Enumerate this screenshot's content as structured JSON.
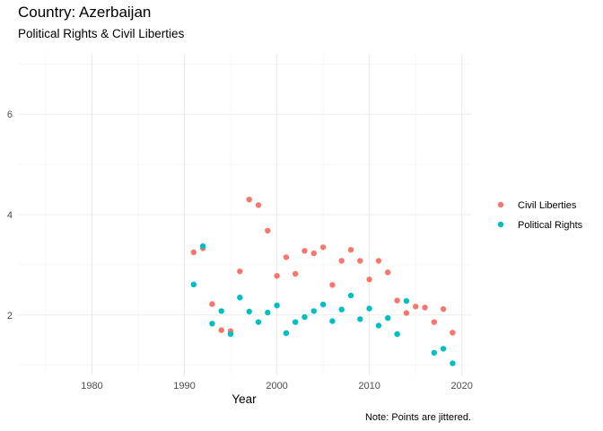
{
  "chart_data": {
    "type": "scatter",
    "title": "Country: Azerbaijan",
    "subtitle": "Political Rights & Civil Liberties",
    "caption": "Note: Points are jittered.",
    "xlabel": "Year",
    "ylabel": "",
    "xlim": [
      1972,
      2021
    ],
    "ylim": [
      0.8,
      7.2
    ],
    "x_ticks": [
      1980,
      1990,
      2000,
      2010,
      2020
    ],
    "y_ticks": [
      2,
      4,
      6
    ],
    "grid": true,
    "legend_position": "right",
    "series": [
      {
        "name": "Civil Liberties",
        "color": "#F8766D",
        "x": [
          1991,
          1992,
          1993,
          1994,
          1995,
          1996,
          1997,
          1998,
          1999,
          2000,
          2001,
          2002,
          2003,
          2004,
          2005,
          2006,
          2007,
          2008,
          2009,
          2010,
          2011,
          2012,
          2013,
          2014,
          2015,
          2016,
          2017,
          2018,
          2019
        ],
        "y": [
          3.25,
          3.33,
          2.22,
          1.7,
          1.68,
          2.87,
          4.3,
          4.19,
          3.68,
          2.78,
          3.15,
          2.82,
          3.28,
          3.23,
          3.35,
          2.6,
          3.08,
          3.3,
          3.08,
          2.71,
          3.08,
          2.85,
          2.29,
          2.04,
          2.17,
          2.15,
          1.86,
          2.12,
          1.65
        ]
      },
      {
        "name": "Political Rights",
        "color": "#00BFC4",
        "x": [
          1991,
          1992,
          1993,
          1994,
          1995,
          1996,
          1997,
          1998,
          1999,
          2000,
          2001,
          2002,
          2003,
          2004,
          2005,
          2006,
          2007,
          2008,
          2009,
          2010,
          2011,
          2012,
          2013,
          2014,
          2017,
          2018,
          2019
        ],
        "y": [
          2.61,
          3.37,
          1.83,
          2.08,
          1.62,
          2.35,
          2.07,
          1.86,
          2.05,
          2.19,
          1.64,
          1.86,
          1.96,
          2.08,
          2.21,
          1.88,
          2.11,
          2.39,
          1.92,
          2.13,
          1.79,
          1.94,
          1.62,
          2.28,
          1.25,
          1.33,
          1.04
        ]
      }
    ]
  }
}
